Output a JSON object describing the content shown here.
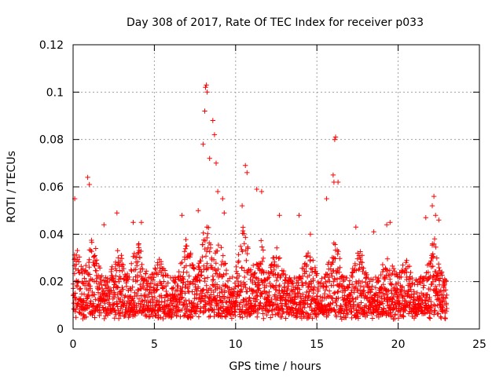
{
  "chart_data": {
    "type": "scatter",
    "title": "Day 308 of 2017, Rate Of TEC Index for receiver p033",
    "xlabel": "GPS time / hours",
    "ylabel": "ROTI / TECUs",
    "xlim": [
      0,
      25
    ],
    "ylim": [
      0,
      0.12
    ],
    "xticks": [
      0,
      5,
      10,
      15,
      20,
      25
    ],
    "yticks": [
      0,
      0.02,
      0.04,
      0.06,
      0.08,
      0.1,
      0.12
    ],
    "xtick_labels": [
      "0",
      "5",
      "10",
      "15",
      "20",
      "25"
    ],
    "ytick_labels": [
      "0",
      "0.02",
      "0.04",
      "0.06",
      "0.08",
      "0.1",
      "0.12"
    ],
    "grid": true,
    "marker": "+",
    "color": "#ff0000",
    "x_data_range": [
      0,
      23
    ],
    "series": [
      {
        "points_outliers": [
          [
            0.1,
            0.055
          ],
          [
            0.9,
            0.064
          ],
          [
            1.0,
            0.061
          ],
          [
            1.9,
            0.044
          ],
          [
            2.7,
            0.049
          ],
          [
            3.7,
            0.045
          ],
          [
            4.2,
            0.045
          ],
          [
            6.7,
            0.048
          ],
          [
            7.7,
            0.05
          ],
          [
            8.0,
            0.078
          ],
          [
            8.1,
            0.092
          ],
          [
            8.15,
            0.102
          ],
          [
            8.2,
            0.103
          ],
          [
            8.25,
            0.1
          ],
          [
            8.4,
            0.072
          ],
          [
            8.6,
            0.088
          ],
          [
            8.7,
            0.082
          ],
          [
            8.8,
            0.07
          ],
          [
            8.9,
            0.058
          ],
          [
            9.2,
            0.055
          ],
          [
            9.3,
            0.049
          ],
          [
            10.4,
            0.052
          ],
          [
            10.6,
            0.069
          ],
          [
            10.7,
            0.066
          ],
          [
            11.3,
            0.059
          ],
          [
            11.6,
            0.058
          ],
          [
            12.7,
            0.048
          ],
          [
            13.9,
            0.048
          ],
          [
            14.6,
            0.04
          ],
          [
            15.6,
            0.055
          ],
          [
            16.0,
            0.065
          ],
          [
            16.05,
            0.062
          ],
          [
            16.1,
            0.08
          ],
          [
            16.15,
            0.081
          ],
          [
            16.3,
            0.062
          ],
          [
            17.4,
            0.043
          ],
          [
            18.5,
            0.041
          ],
          [
            19.3,
            0.044
          ],
          [
            19.5,
            0.045
          ],
          [
            21.7,
            0.047
          ],
          [
            22.1,
            0.052
          ],
          [
            22.2,
            0.056
          ],
          [
            22.3,
            0.048
          ],
          [
            22.5,
            0.046
          ]
        ],
        "bulk": {
          "x_range": [
            0,
            23
          ],
          "y_typical_range": [
            0.003,
            0.035
          ],
          "bursts": [
            [
              0.2,
              0.035
            ],
            [
              1.2,
              0.04
            ],
            [
              2.8,
              0.035
            ],
            [
              4.0,
              0.04
            ],
            [
              5.3,
              0.03
            ],
            [
              7.0,
              0.04
            ],
            [
              8.2,
              0.05
            ],
            [
              9.0,
              0.04
            ],
            [
              10.5,
              0.045
            ],
            [
              11.5,
              0.04
            ],
            [
              12.5,
              0.035
            ],
            [
              14.5,
              0.035
            ],
            [
              16.1,
              0.04
            ],
            [
              17.6,
              0.035
            ],
            [
              19.4,
              0.035
            ],
            [
              20.5,
              0.03
            ],
            [
              22.2,
              0.04
            ]
          ]
        }
      }
    ]
  }
}
